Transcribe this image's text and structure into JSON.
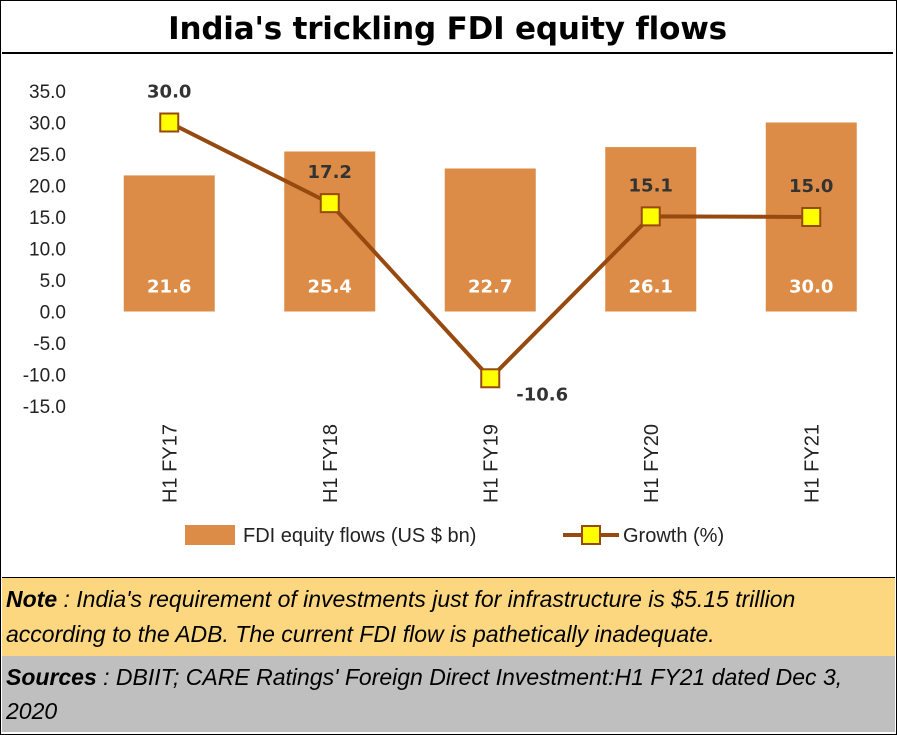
{
  "title": "India's trickling FDI equity flows",
  "chart_data": {
    "type": "bar+line",
    "categories": [
      "H1 FY17",
      "H1 FY18",
      "H1 FY19",
      "H1 FY20",
      "H1 FY21"
    ],
    "series": [
      {
        "name": "FDI equity flows (US $ bn)",
        "kind": "bar",
        "values": [
          21.6,
          25.4,
          22.7,
          26.1,
          30.0
        ],
        "labels": [
          "21.6",
          "25.4",
          "22.7",
          "26.1",
          "30.0"
        ]
      },
      {
        "name": "Growth (%)",
        "kind": "line",
        "values": [
          30.0,
          17.2,
          -10.6,
          15.1,
          15.0
        ],
        "labels": [
          "30.0",
          "17.2",
          "-10.6",
          "15.1",
          "15.0"
        ]
      }
    ],
    "yticks": [
      "35.0",
      "30.0",
      "25.0",
      "20.0",
      "15.0",
      "10.0",
      "5.0",
      "0.0",
      "-5.0",
      "-10.0",
      "-15.0"
    ],
    "ylim": [
      -15,
      35
    ],
    "colors": {
      "bar": "#dc8c46",
      "line": "#974a0f",
      "marker_fill": "#ffff00",
      "marker_edge": "#974a0f"
    }
  },
  "note": {
    "label": "Note",
    "text": " : India's requirement of investments just for infrastructure is $5.15 trillion according to the ADB.  The current FDI flow is pathetically inadequate."
  },
  "sources": {
    "label": "Sources",
    "text": " : DBIIT; CARE Ratings'  Foreign Direct Investment:H1 FY21 dated Dec 3, 2020"
  }
}
